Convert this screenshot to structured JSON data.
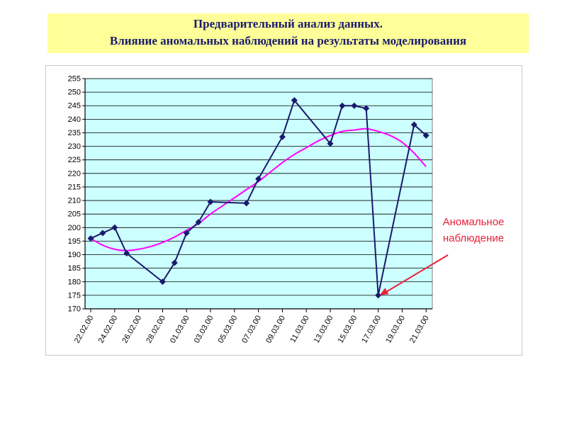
{
  "header": {
    "line1": "Предварительный анализ данных.",
    "line2": "Влияние аномальных наблюдений на результаты моделирования"
  },
  "colors": {
    "title_bg": "#ffff99",
    "title_text": "#1a1a6e",
    "plot_bg": "#ccffff",
    "series_line": "#1a1a6e",
    "trend_line": "#ff00ff",
    "annotation": "#e8223a"
  },
  "chart_data": {
    "type": "line",
    "title": "",
    "xlabel": "",
    "ylabel": "",
    "ylim": [
      170,
      255
    ],
    "y_ticks": [
      170,
      175,
      180,
      185,
      190,
      195,
      200,
      205,
      210,
      215,
      220,
      225,
      230,
      235,
      240,
      245,
      250,
      255
    ],
    "x_tick_labels": [
      "22.02.00",
      "24.02.00",
      "26.02.00",
      "28.02.00",
      "01.03.00",
      "03.03.00",
      "05.03.00",
      "07.03.00",
      "09.03.00",
      "11.03.00",
      "13.03.00",
      "15.03.00",
      "17.03.00",
      "19.03.00",
      "21.03.00"
    ],
    "grid": true,
    "legend": "none",
    "series": [
      {
        "points": [
          {
            "x": "22.02.00",
            "y": 196
          },
          {
            "x": "23.02.00",
            "y": 198
          },
          {
            "x": "24.02.00",
            "y": 200
          },
          {
            "x": "25.02.00",
            "y": 190.5
          },
          {
            "x": "28.02.00",
            "y": 180
          },
          {
            "x": "29.02.00",
            "y": 187
          },
          {
            "x": "01.03.00",
            "y": 198
          },
          {
            "x": "02.03.00",
            "y": 202
          },
          {
            "x": "03.03.00",
            "y": 209.5
          },
          {
            "x": "06.03.00",
            "y": 209
          },
          {
            "x": "07.03.00",
            "y": 218
          },
          {
            "x": "09.03.00",
            "y": 233.5
          },
          {
            "x": "10.03.00",
            "y": 247
          },
          {
            "x": "13.03.00",
            "y": 231
          },
          {
            "x": "14.03.00",
            "y": 245
          },
          {
            "x": "15.03.00",
            "y": 245
          },
          {
            "x": "16.03.00",
            "y": 244
          },
          {
            "x": "17.03.00",
            "y": 175
          },
          {
            "x": "20.03.00",
            "y": 238
          },
          {
            "x": "21.03.00",
            "y": 234
          }
        ]
      },
      {
        "style": "smooth trend",
        "points": [
          {
            "x": "22.02.00",
            "y": 196
          },
          {
            "x": "23.02.00",
            "y": 193.5
          },
          {
            "x": "24.02.00",
            "y": 192
          },
          {
            "x": "25.02.00",
            "y": 191.5
          },
          {
            "x": "26.02.00",
            "y": 192
          },
          {
            "x": "27.02.00",
            "y": 193
          },
          {
            "x": "28.02.00",
            "y": 194.5
          },
          {
            "x": "29.02.00",
            "y": 196.5
          },
          {
            "x": "01.03.00",
            "y": 199
          },
          {
            "x": "02.03.00",
            "y": 201.5
          },
          {
            "x": "03.03.00",
            "y": 205
          },
          {
            "x": "04.03.00",
            "y": 208
          },
          {
            "x": "05.03.00",
            "y": 211
          },
          {
            "x": "06.03.00",
            "y": 214
          },
          {
            "x": "07.03.00",
            "y": 217
          },
          {
            "x": "08.03.00",
            "y": 220.5
          },
          {
            "x": "09.03.00",
            "y": 224
          },
          {
            "x": "10.03.00",
            "y": 227
          },
          {
            "x": "11.03.00",
            "y": 229.5
          },
          {
            "x": "12.03.00",
            "y": 232
          },
          {
            "x": "13.03.00",
            "y": 234
          },
          {
            "x": "14.03.00",
            "y": 235.5
          },
          {
            "x": "15.03.00",
            "y": 236
          },
          {
            "x": "16.03.00",
            "y": 236.5
          },
          {
            "x": "17.03.00",
            "y": 235.5
          },
          {
            "x": "18.03.00",
            "y": 234
          },
          {
            "x": "19.03.00",
            "y": 231.5
          },
          {
            "x": "20.03.00",
            "y": 227.5
          },
          {
            "x": "21.03.00",
            "y": 222.5
          }
        ]
      }
    ],
    "annotations": [
      {
        "text_line1": "Аномальное",
        "text_line2": "наблюдение",
        "points_to": {
          "x": "17.03.00",
          "y": 175
        }
      }
    ]
  }
}
